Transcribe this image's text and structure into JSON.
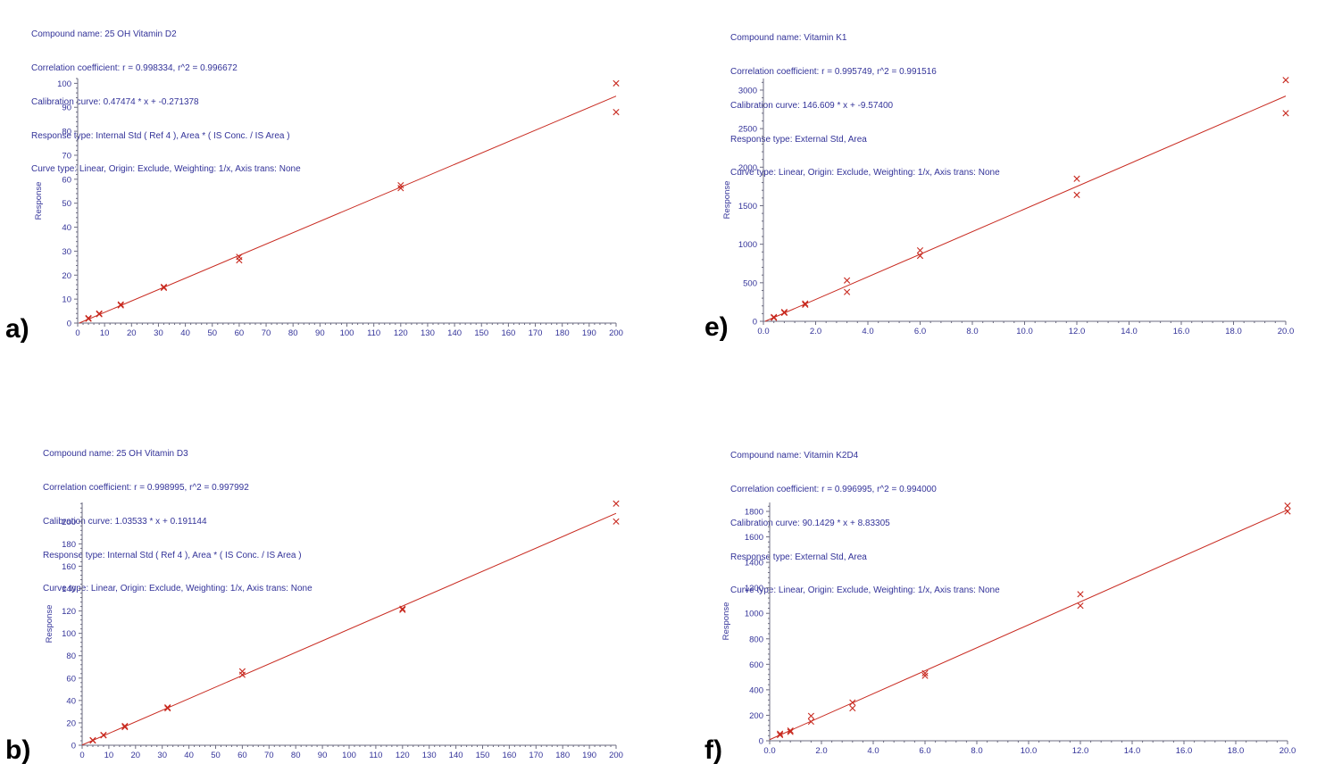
{
  "colors": {
    "header_text": "#333399",
    "tick_text": "#333399",
    "axis_line": "#6b6b80",
    "data_red": "#c8291f",
    "panel_label": "#000000",
    "background": "#ffffff"
  },
  "panels": [
    {
      "label": "a)",
      "header": {
        "compound": "Compound name: 25 OH Vitamin D2",
        "correlation": "Correlation coefficient: r = 0.998334, r^2 = 0.996672",
        "curve": "Calibration curve: 0.47474 * x + -0.271378",
        "response_type": "Response type: Internal Std ( Ref 4 ), Area * ( IS Conc. / IS Area )",
        "curve_type": "Curve type: Linear, Origin: Exclude, Weighting: 1/x, Axis trans: None"
      }
    },
    {
      "label": "b)",
      "header": {
        "compound": "Compound name: 25 OH Vitamin D3",
        "correlation": "Correlation coefficient: r = 0.998995, r^2 = 0.997992",
        "curve": "Calibration curve: 1.03533 * x + 0.191144",
        "response_type": "Response type: Internal Std ( Ref 4 ), Area * ( IS Conc. / IS Area )",
        "curve_type": "Curve type: Linear, Origin: Exclude, Weighting: 1/x, Axis trans: None"
      }
    },
    {
      "label": "e)",
      "header": {
        "compound": "Compound name: Vitamin K1",
        "correlation": "Correlation coefficient: r = 0.995749, r^2 = 0.991516",
        "curve": "Calibration curve: 146.609 * x + -9.57400",
        "response_type": "Response type: External Std, Area",
        "curve_type": "Curve type: Linear, Origin: Exclude, Weighting: 1/x, Axis trans: None"
      }
    },
    {
      "label": "f)",
      "header": {
        "compound": "Compound name: Vitamin K2D4",
        "correlation": "Correlation coefficient: r = 0.996995, r^2 = 0.994000",
        "curve": "Calibration curve: 90.1429 * x + 8.83305",
        "response_type": "Response type: External Std, Area",
        "curve_type": "Curve type: Linear, Origin: Exclude, Weighting: 1/x, Axis trans: None"
      }
    }
  ],
  "chart_data": [
    {
      "type": "scatter",
      "title": "25 OH Vitamin D2",
      "xlabel": "",
      "ylabel": "Response",
      "marker": "x",
      "grid": false,
      "legend": "none",
      "xlim": [
        0,
        200
      ],
      "ylim": [
        0,
        102
      ],
      "xtick_values": [
        0,
        10,
        20,
        30,
        40,
        50,
        60,
        70,
        80,
        90,
        100,
        110,
        120,
        130,
        140,
        150,
        160,
        170,
        180,
        190,
        200
      ],
      "xtick_labels": [
        "0",
        "10",
        "20",
        "30",
        "40",
        "50",
        "60",
        "70",
        "80",
        "90",
        "100",
        "110",
        "120",
        "130",
        "140",
        "150",
        "160",
        "170",
        "180",
        "190",
        "200"
      ],
      "ytick_values": [
        0,
        10,
        20,
        30,
        40,
        50,
        60,
        70,
        80,
        90,
        100
      ],
      "ytick_labels": [
        "0",
        "10",
        "20",
        "30",
        "40",
        "50",
        "60",
        "70",
        "80",
        "90",
        "100"
      ],
      "fit": {
        "slope": 0.47474,
        "intercept": -0.271378,
        "r": 0.998334,
        "r2": 0.996672
      },
      "points": [
        [
          4,
          1.8
        ],
        [
          4,
          2.1
        ],
        [
          8,
          3.7
        ],
        [
          8,
          4.0
        ],
        [
          16,
          7.4
        ],
        [
          16,
          7.8
        ],
        [
          32,
          14.7
        ],
        [
          32,
          15.1
        ],
        [
          60,
          26.2
        ],
        [
          60,
          27.6
        ],
        [
          120,
          56.3
        ],
        [
          120,
          57.5
        ],
        [
          200,
          88
        ],
        [
          200,
          100
        ]
      ]
    },
    {
      "type": "scatter",
      "title": "25 OH Vitamin D3",
      "xlabel": "",
      "ylabel": "Response",
      "marker": "x",
      "grid": false,
      "legend": "none",
      "xlim": [
        0,
        200
      ],
      "ylim": [
        0,
        217
      ],
      "xtick_values": [
        0,
        10,
        20,
        30,
        40,
        50,
        60,
        70,
        80,
        90,
        100,
        110,
        120,
        130,
        140,
        150,
        160,
        170,
        180,
        190,
        200
      ],
      "xtick_labels": [
        "0",
        "10",
        "20",
        "30",
        "40",
        "50",
        "60",
        "70",
        "80",
        "90",
        "100",
        "110",
        "120",
        "130",
        "140",
        "150",
        "160",
        "170",
        "180",
        "190",
        "200"
      ],
      "ytick_values": [
        0,
        20,
        40,
        60,
        80,
        100,
        120,
        140,
        160,
        180,
        200
      ],
      "ytick_labels": [
        "0",
        "20",
        "40",
        "60",
        "80",
        "100",
        "120",
        "140",
        "160",
        "180",
        "200"
      ],
      "fit": {
        "slope": 1.03533,
        "intercept": 0.191144,
        "r": 0.998995,
        "r2": 0.997992
      },
      "points": [
        [
          4,
          4.2
        ],
        [
          4,
          4.5
        ],
        [
          8,
          8.8
        ],
        [
          8,
          9.2
        ],
        [
          16,
          16.2
        ],
        [
          16,
          17.2
        ],
        [
          32,
          33.0
        ],
        [
          32,
          33.8
        ],
        [
          60,
          63
        ],
        [
          60,
          66
        ],
        [
          120,
          121
        ],
        [
          120,
          122
        ],
        [
          200,
          200
        ],
        [
          200,
          216
        ]
      ]
    },
    {
      "type": "scatter",
      "title": "Vitamin K1",
      "xlabel": "",
      "ylabel": "Response",
      "marker": "x",
      "grid": false,
      "legend": "none",
      "xlim": [
        0,
        20
      ],
      "ylim": [
        0,
        3150
      ],
      "xtick_values": [
        0,
        2,
        4,
        6,
        8,
        10,
        12,
        14,
        16,
        18,
        20
      ],
      "xtick_labels": [
        "0.0",
        "2.0",
        "4.0",
        "6.0",
        "8.0",
        "10.0",
        "12.0",
        "14.0",
        "16.0",
        "18.0",
        "20.0"
      ],
      "ytick_values": [
        0,
        500,
        1000,
        1500,
        2000,
        2500,
        3000
      ],
      "ytick_labels": [
        "0",
        "500",
        "1000",
        "1500",
        "2000",
        "2500",
        "3000"
      ],
      "fit": {
        "slope": 146.609,
        "intercept": -9.574,
        "r": 0.995749,
        "r2": 0.991516
      },
      "points": [
        [
          0.4,
          45
        ],
        [
          0.4,
          55
        ],
        [
          0.8,
          110
        ],
        [
          0.8,
          120
        ],
        [
          1.6,
          215
        ],
        [
          1.6,
          230
        ],
        [
          3.2,
          380
        ],
        [
          3.2,
          530
        ],
        [
          6,
          850
        ],
        [
          6,
          920
        ],
        [
          12,
          1640
        ],
        [
          12,
          1850
        ],
        [
          20,
          2700
        ],
        [
          20,
          3130
        ]
      ]
    },
    {
      "type": "scatter",
      "title": "Vitamin K2D4",
      "xlabel": "",
      "ylabel": "Response",
      "marker": "x",
      "grid": false,
      "legend": "none",
      "xlim": [
        0,
        20
      ],
      "ylim": [
        0,
        1870
      ],
      "xtick_values": [
        0,
        2,
        4,
        6,
        8,
        10,
        12,
        14,
        16,
        18,
        20
      ],
      "xtick_labels": [
        "0.0",
        "2.0",
        "4.0",
        "6.0",
        "8.0",
        "10.0",
        "12.0",
        "14.0",
        "16.0",
        "18.0",
        "20.0"
      ],
      "ytick_values": [
        0,
        200,
        400,
        600,
        800,
        1000,
        1200,
        1400,
        1600,
        1800
      ],
      "ytick_labels": [
        "0",
        "200",
        "400",
        "600",
        "800",
        "1000",
        "1200",
        "1400",
        "1600",
        "1800"
      ],
      "fit": {
        "slope": 90.1429,
        "intercept": 8.83305,
        "r": 0.996995,
        "r2": 0.994
      },
      "points": [
        [
          0.4,
          45
        ],
        [
          0.4,
          55
        ],
        [
          0.8,
          70
        ],
        [
          0.8,
          80
        ],
        [
          1.6,
          150
        ],
        [
          1.6,
          195
        ],
        [
          3.2,
          255
        ],
        [
          3.2,
          300
        ],
        [
          6,
          510
        ],
        [
          6,
          530
        ],
        [
          12,
          1060
        ],
        [
          12,
          1150
        ],
        [
          20,
          1800
        ],
        [
          20,
          1845
        ]
      ]
    }
  ]
}
